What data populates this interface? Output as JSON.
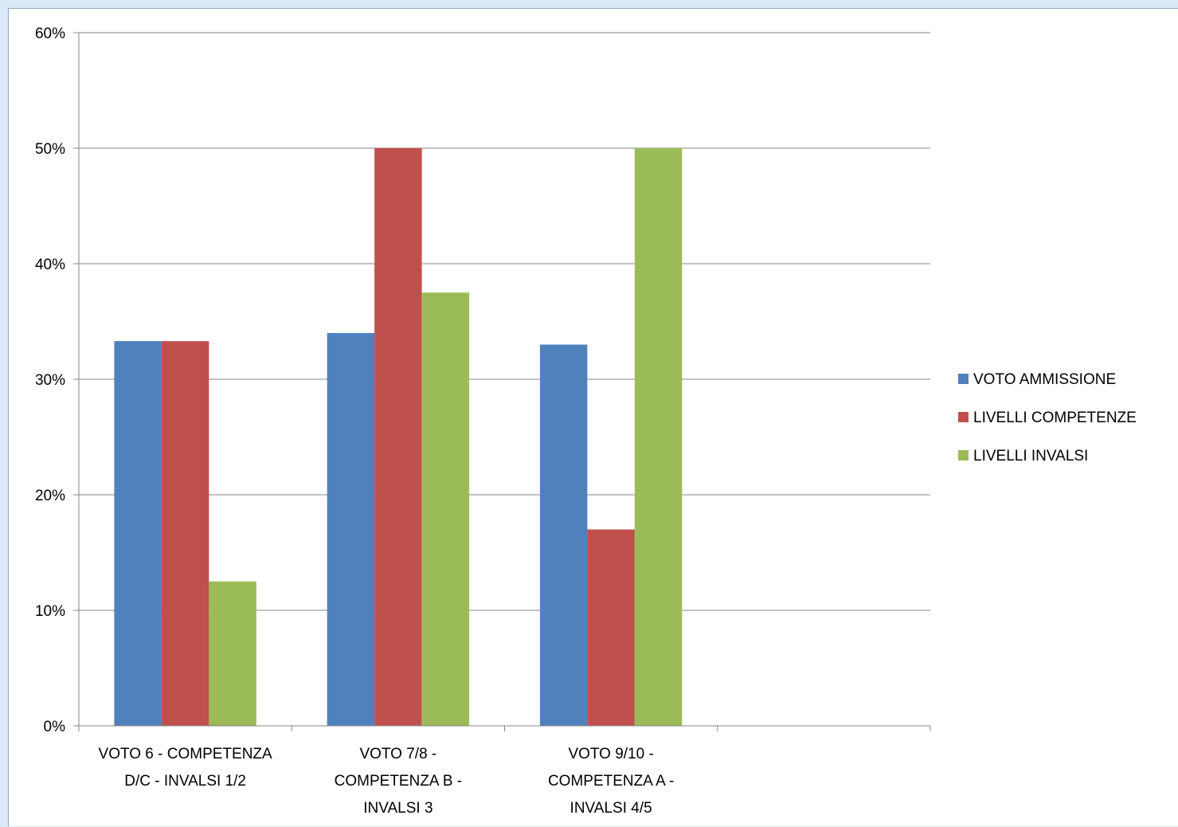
{
  "chart_data": {
    "type": "bar",
    "categories": [
      [
        "VOTO 6 - COMPETENZA",
        "D/C - INVALSI 1/2"
      ],
      [
        "VOTO 7/8 -",
        "COMPETENZA B -",
        "INVALSI 3"
      ],
      [
        "VOTO 9/10 -",
        "COMPETENZA A -",
        "INVALSI 4/5"
      ],
      [
        ""
      ]
    ],
    "series": [
      {
        "name": "VOTO AMMISSIONE",
        "color": "#4f81bd",
        "values": [
          33.3,
          34,
          33,
          null
        ]
      },
      {
        "name": "LIVELLI COMPETENZE",
        "color": "#c0504d",
        "values": [
          33.3,
          50,
          17,
          null
        ]
      },
      {
        "name": "LIVELLI INVALSI",
        "color": "#9bbb59",
        "values": [
          12.5,
          37.5,
          50,
          null
        ]
      }
    ],
    "yticks": [
      "0%",
      "10%",
      "20%",
      "30%",
      "40%",
      "50%",
      "60%"
    ],
    "ylim": [
      0,
      60
    ],
    "grid": true,
    "legend_position": "right",
    "gridline_color": "#868686"
  }
}
